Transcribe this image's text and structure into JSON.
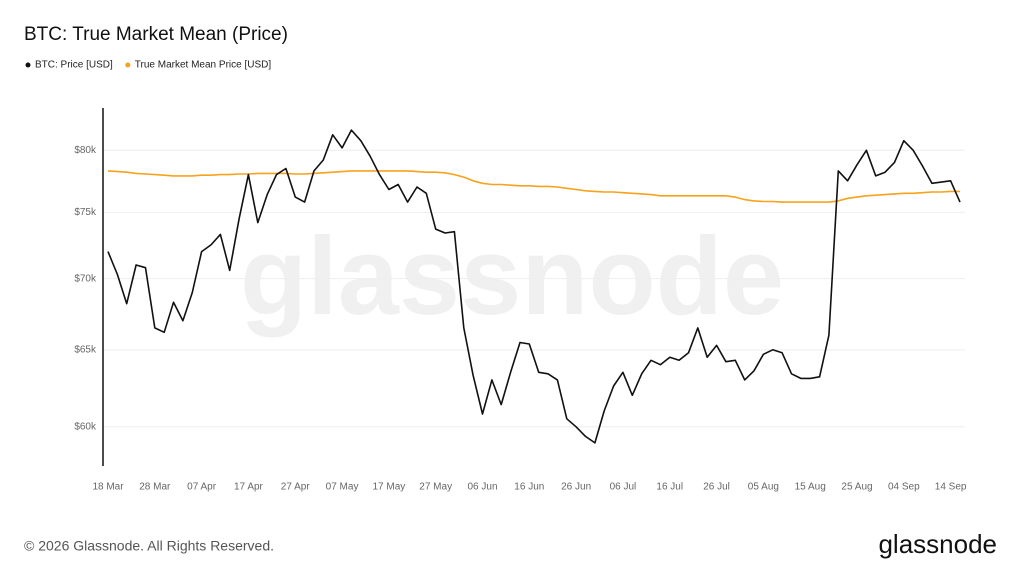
{
  "chart_data": {
    "type": "line",
    "title": "BTC: True Market Mean (Price)",
    "log_scale": true,
    "grid": true,
    "legend_position": "top-left",
    "watermark": "glassnode",
    "categories": [
      "18 Mar",
      null,
      null,
      null,
      null,
      "28 Mar",
      null,
      null,
      null,
      null,
      "07 Apr",
      null,
      null,
      null,
      null,
      "17 Apr",
      null,
      null,
      null,
      null,
      "27 Apr",
      null,
      null,
      null,
      null,
      "07 May",
      null,
      null,
      null,
      null,
      "17 May",
      null,
      null,
      null,
      null,
      "27 May",
      null,
      null,
      null,
      null,
      "06 Jun",
      null,
      null,
      null,
      null,
      "16 Jun",
      null,
      null,
      null,
      null,
      "26 Jun",
      null,
      null,
      null,
      null,
      "06 Jul",
      null,
      null,
      null,
      null,
      "16 Jul",
      null,
      null,
      null,
      null,
      "26 Jul",
      null,
      null,
      null,
      null,
      "05 Aug",
      null,
      null,
      null,
      null,
      "15 Aug",
      null,
      null,
      null,
      null,
      "25 Aug",
      null,
      null,
      null,
      null,
      "04 Sep",
      null,
      null,
      null,
      null,
      "14 Sep",
      null
    ],
    "series": [
      {
        "name": "BTC: Price [USD]",
        "color": "#111111",
        "values": [
          72000,
          70300,
          68200,
          71000,
          70800,
          66500,
          66200,
          68300,
          67000,
          69000,
          72000,
          72500,
          73300,
          70600,
          74500,
          78000,
          74200,
          76400,
          78000,
          78500,
          76200,
          75800,
          78300,
          79200,
          81300,
          80200,
          81700,
          80800,
          79500,
          78000,
          76800,
          77200,
          75800,
          77000,
          76500,
          73700,
          73400,
          73500,
          66500,
          63300,
          60800,
          63000,
          61400,
          63500,
          65500,
          65400,
          63500,
          63400,
          63000,
          60500,
          60000,
          59400,
          59000,
          61000,
          62600,
          63500,
          62000,
          63400,
          64300,
          64000,
          64500,
          64300,
          64800,
          66500,
          64500,
          65300,
          64200,
          64300,
          63000,
          63600,
          64700,
          65000,
          64800,
          63400,
          63100,
          63100,
          63200,
          66000,
          78300,
          77500,
          78800,
          80000,
          77900,
          78200,
          79000,
          80800,
          80000,
          78700,
          77300,
          77400,
          77500,
          75800
        ]
      },
      {
        "name": "True Market Mean Price [USD]",
        "color": "#f7a21b",
        "values": [
          78300,
          78250,
          78200,
          78100,
          78050,
          78000,
          77950,
          77900,
          77900,
          77900,
          77950,
          77950,
          78000,
          78000,
          78050,
          78050,
          78100,
          78100,
          78100,
          78100,
          78050,
          78050,
          78100,
          78150,
          78200,
          78250,
          78300,
          78300,
          78300,
          78300,
          78300,
          78300,
          78300,
          78250,
          78200,
          78200,
          78150,
          78000,
          77800,
          77500,
          77300,
          77200,
          77200,
          77150,
          77100,
          77100,
          77050,
          77050,
          77000,
          76900,
          76800,
          76700,
          76650,
          76600,
          76600,
          76550,
          76500,
          76450,
          76400,
          76300,
          76300,
          76300,
          76300,
          76300,
          76300,
          76300,
          76300,
          76200,
          76000,
          75900,
          75850,
          75850,
          75800,
          75800,
          75800,
          75800,
          75800,
          75800,
          75900,
          76100,
          76200,
          76300,
          76350,
          76400,
          76450,
          76500,
          76500,
          76550,
          76600,
          76600,
          76650,
          76650
        ]
      }
    ],
    "ylim": [
      57600,
      83600
    ],
    "yticks": [
      {
        "value": 60000,
        "label": "$60k"
      },
      {
        "value": 65000,
        "label": "$65k"
      },
      {
        "value": 70000,
        "label": "$70k"
      },
      {
        "value": 75000,
        "label": "$75k"
      },
      {
        "value": 80000,
        "label": "$80k"
      }
    ]
  },
  "footer": {
    "copyright": "© 2026 Glassnode. All Rights Reserved.",
    "logo": "glassnode"
  }
}
